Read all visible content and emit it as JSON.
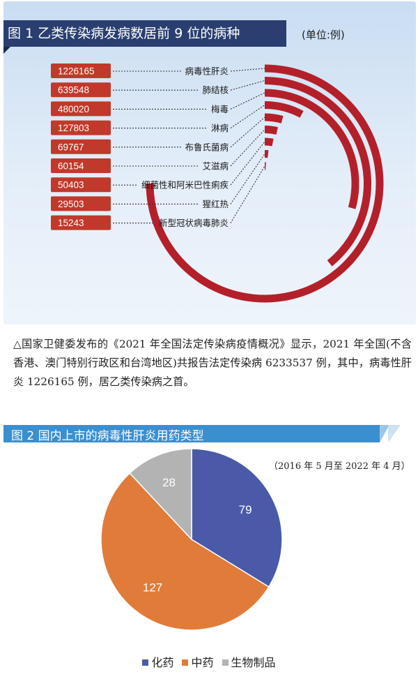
{
  "figure1": {
    "title": "图 1   乙类传染病发病数居前 9 位的病种",
    "unit": "(单位:例)",
    "colors": {
      "label_box": "#c0392b",
      "arc": "#b3202a"
    }
  },
  "caption": "△国家卫健委发布的《2021 年全国法定传染病疫情概况》显示，2021 年全国(不含香港、澳门特别行政区和台湾地区)共报告法定传染病 6233537 例，其中，病毒性肝炎 1226165 例，居乙类传染病之首。",
  "figure2": {
    "title": "图 2   国内上市的病毒性肝炎用药类型",
    "period": "（2016 年 5 月至 2022 年 4 月）"
  },
  "chart_data": [
    {
      "type": "bar",
      "title": "图 1   乙类传染病发病数居前 9 位的病种",
      "unit": "(单位:例)",
      "categories": [
        "病毒性肝炎",
        "肺结核",
        "梅毒",
        "淋病",
        "布鲁氏菌病",
        "艾滋病",
        "细菌性和阿米巴性痢疾",
        "猩红热",
        "新型冠状病毒肺炎"
      ],
      "values": [
        1226165,
        639548,
        480020,
        127803,
        69767,
        60154,
        50403,
        29503,
        15243
      ],
      "value_labels": [
        "1226165",
        "639548",
        "480020",
        "127803",
        "69767",
        "60154",
        "50403",
        "29503",
        "15243"
      ],
      "style": "radial-arc"
    },
    {
      "type": "pie",
      "labels": [
        "化药",
        "中药",
        "生物制品"
      ],
      "values": [
        79,
        127,
        28
      ],
      "value_labels": [
        "79",
        "127",
        "28"
      ],
      "colors": [
        "#4a5aa8",
        "#e07b39",
        "#b3b3b3"
      ],
      "legend": "bottom"
    }
  ]
}
